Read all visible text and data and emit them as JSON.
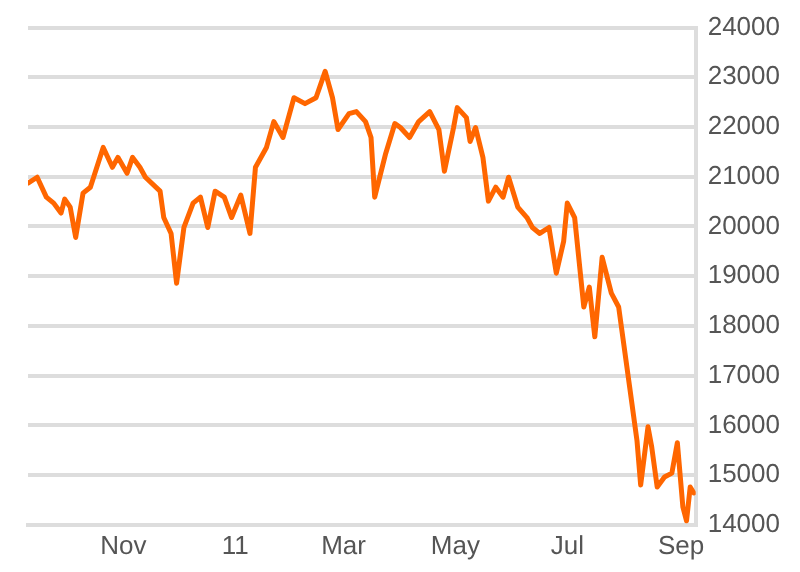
{
  "chart_data": {
    "type": "line",
    "x": [
      "2010-09-10",
      "2010-09-15",
      "2010-09-20",
      "2010-09-24",
      "2010-09-28",
      "2010-09-30",
      "2010-10-03",
      "2010-10-06",
      "2010-10-10",
      "2010-10-14",
      "2010-10-21",
      "2010-10-26",
      "2010-10-29",
      "2010-11-03",
      "2010-11-06",
      "2010-11-10",
      "2010-11-13",
      "2010-11-21",
      "2010-11-23",
      "2010-11-27",
      "2010-11-30",
      "2010-12-04",
      "2010-12-09",
      "2010-12-13",
      "2010-12-17",
      "2010-12-21",
      "2010-12-26",
      "2010-12-30",
      "2011-01-04",
      "2011-01-09",
      "2011-01-12",
      "2011-01-18",
      "2011-01-22",
      "2011-01-27",
      "2011-02-02",
      "2011-02-08",
      "2011-02-14",
      "2011-02-19",
      "2011-02-23",
      "2011-02-26",
      "2011-03-04",
      "2011-03-08",
      "2011-03-13",
      "2011-03-16",
      "2011-03-18",
      "2011-03-24",
      "2011-03-29",
      "2011-04-01",
      "2011-04-06",
      "2011-04-11",
      "2011-04-17",
      "2011-04-22",
      "2011-04-25",
      "2011-04-30",
      "2011-05-02",
      "2011-05-07",
      "2011-05-09",
      "2011-05-12",
      "2011-05-16",
      "2011-05-19",
      "2011-05-23",
      "2011-05-27",
      "2011-05-30",
      "2011-06-04",
      "2011-06-09",
      "2011-06-12",
      "2011-06-16",
      "2011-06-21",
      "2011-06-25",
      "2011-06-29",
      "2011-07-01",
      "2011-07-05",
      "2011-07-10",
      "2011-07-13",
      "2011-07-16",
      "2011-07-19",
      "2011-07-20",
      "2011-07-25",
      "2011-07-29",
      "2011-08-04",
      "2011-08-08",
      "2011-08-10",
      "2011-08-14",
      "2011-08-16",
      "2011-08-19",
      "2011-08-23",
      "2011-08-27",
      "2011-08-30",
      "2011-09-02",
      "2011-09-04",
      "2011-09-06",
      "2011-09-08"
    ],
    "series": [
      {
        "color": "#ff6600",
        "values": [
          20870,
          20990,
          20590,
          20470,
          20270,
          20550,
          20390,
          19780,
          20670,
          20790,
          21590,
          21190,
          21390,
          21070,
          21390,
          21190,
          20990,
          20710,
          20180,
          19860,
          18860,
          19980,
          20470,
          20590,
          19980,
          20710,
          20590,
          20180,
          20630,
          19860,
          21190,
          21590,
          22110,
          21790,
          22590,
          22470,
          22590,
          23120,
          22590,
          21950,
          22270,
          22310,
          22110,
          21790,
          20590,
          21470,
          22070,
          21990,
          21790,
          22110,
          22310,
          21950,
          21110,
          21990,
          22390,
          22190,
          21710,
          21990,
          21390,
          20510,
          20790,
          20590,
          20990,
          20390,
          20180,
          19980,
          19860,
          19980,
          19060,
          19700,
          20470,
          20180,
          18380,
          18780,
          17780,
          18980,
          19380,
          18660,
          18380,
          16770,
          15690,
          14800,
          15970,
          15570,
          14760,
          14960,
          15040,
          15650,
          14360,
          14080,
          14760,
          14640
        ]
      }
    ],
    "xlim": [
      "2010-09-10",
      "2011-09-09"
    ],
    "xticks": [
      {
        "value": "2010-11-01",
        "label": "Nov"
      },
      {
        "value": "2011-01-01",
        "label": "11"
      },
      {
        "value": "2011-03-01",
        "label": "Mar"
      },
      {
        "value": "2011-05-01",
        "label": "May"
      },
      {
        "value": "2011-07-01",
        "label": "Jul"
      },
      {
        "value": "2011-09-01",
        "label": "Sep"
      }
    ],
    "ylim": [
      14000,
      24000
    ],
    "yticks": [
      14000,
      15000,
      16000,
      17000,
      18000,
      19000,
      20000,
      21000,
      22000,
      23000,
      24000
    ],
    "grid": "y",
    "legend": false,
    "marker": "none",
    "line_style": "solid"
  }
}
